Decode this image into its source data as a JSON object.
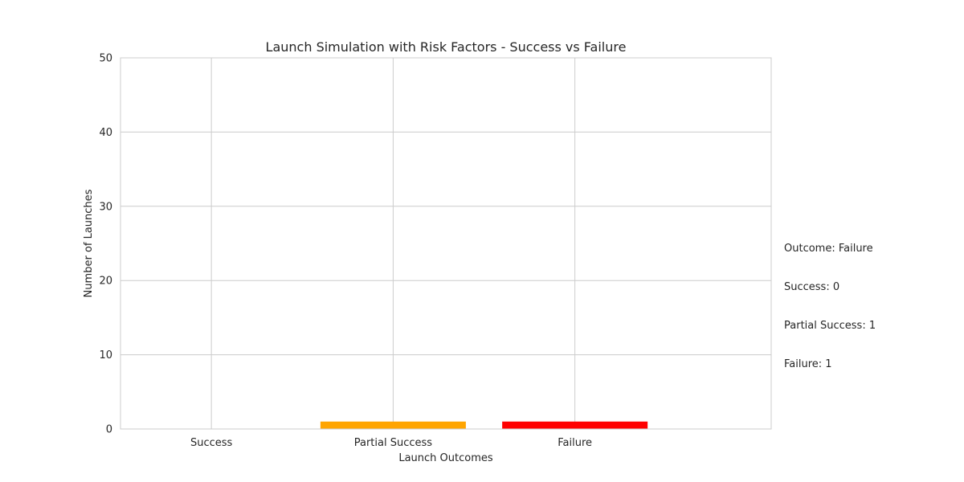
{
  "chart_data": {
    "type": "bar",
    "title": "Launch Simulation with Risk Factors - Success vs Failure",
    "xlabel": "Launch Outcomes",
    "ylabel": "Number of Launches",
    "categories": [
      "Success",
      "Partial Success",
      "Failure"
    ],
    "values": [
      0,
      1,
      1
    ],
    "colors": [
      "#008000",
      "#FFA500",
      "#FF0000"
    ],
    "ylim": [
      0,
      50
    ],
    "yticks": [
      0,
      10,
      20,
      30,
      40,
      50
    ],
    "grid": true,
    "annotation": {
      "lines": [
        "Outcome: Failure",
        "Success: 0",
        "Partial Success: 1",
        "Failure: 1"
      ]
    }
  }
}
